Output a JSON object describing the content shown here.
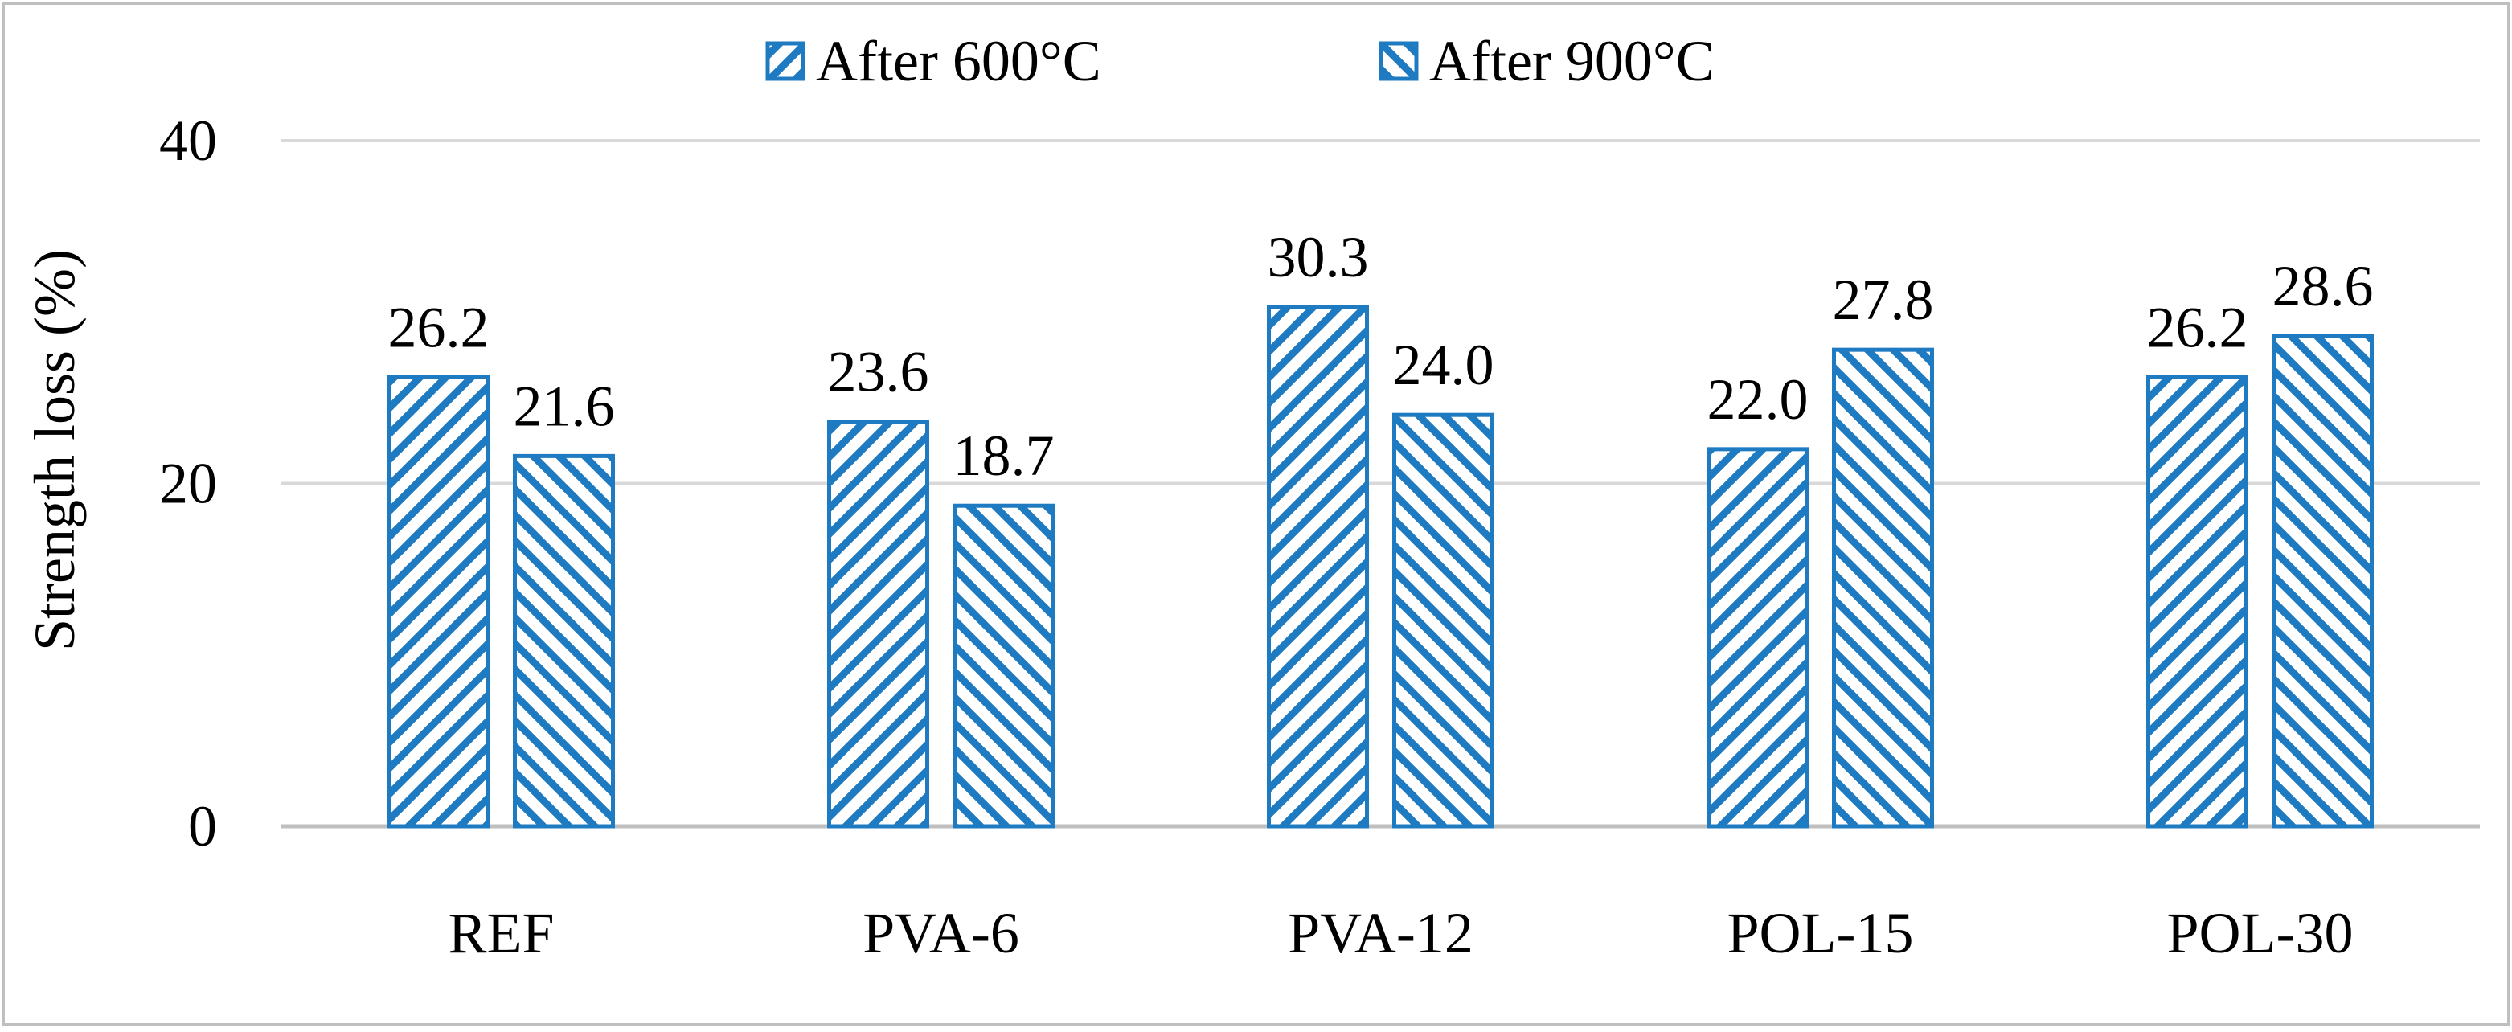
{
  "chart_data": {
    "type": "bar",
    "title": "",
    "xlabel": "",
    "ylabel": "Strength loss (%)",
    "ylim": [
      0,
      40
    ],
    "yticks": [
      0,
      20,
      40
    ],
    "grid": true,
    "legend_position": "top-center",
    "categories": [
      "REF",
      "PVA-6",
      "PVA-12",
      "POL-15",
      "POL-30"
    ],
    "series": [
      {
        "name": "After 600°C",
        "pattern": "forward-diagonal",
        "values": [
          26.2,
          23.6,
          30.3,
          22.0,
          26.2
        ],
        "labels": [
          "26.2",
          "23.6",
          "30.3",
          "22.0",
          "26.2"
        ]
      },
      {
        "name": "After 900°C",
        "pattern": "backward-diagonal",
        "values": [
          21.6,
          18.7,
          24.0,
          27.8,
          28.6
        ],
        "labels": [
          "21.6",
          "18.7",
          "24.0",
          "27.8",
          "28.6"
        ]
      }
    ],
    "colors": {
      "bar": "#1f7bc1",
      "gridline": "#d9d9d9",
      "axis": "#bfbfbf",
      "frame": "#bfbfbf"
    }
  }
}
